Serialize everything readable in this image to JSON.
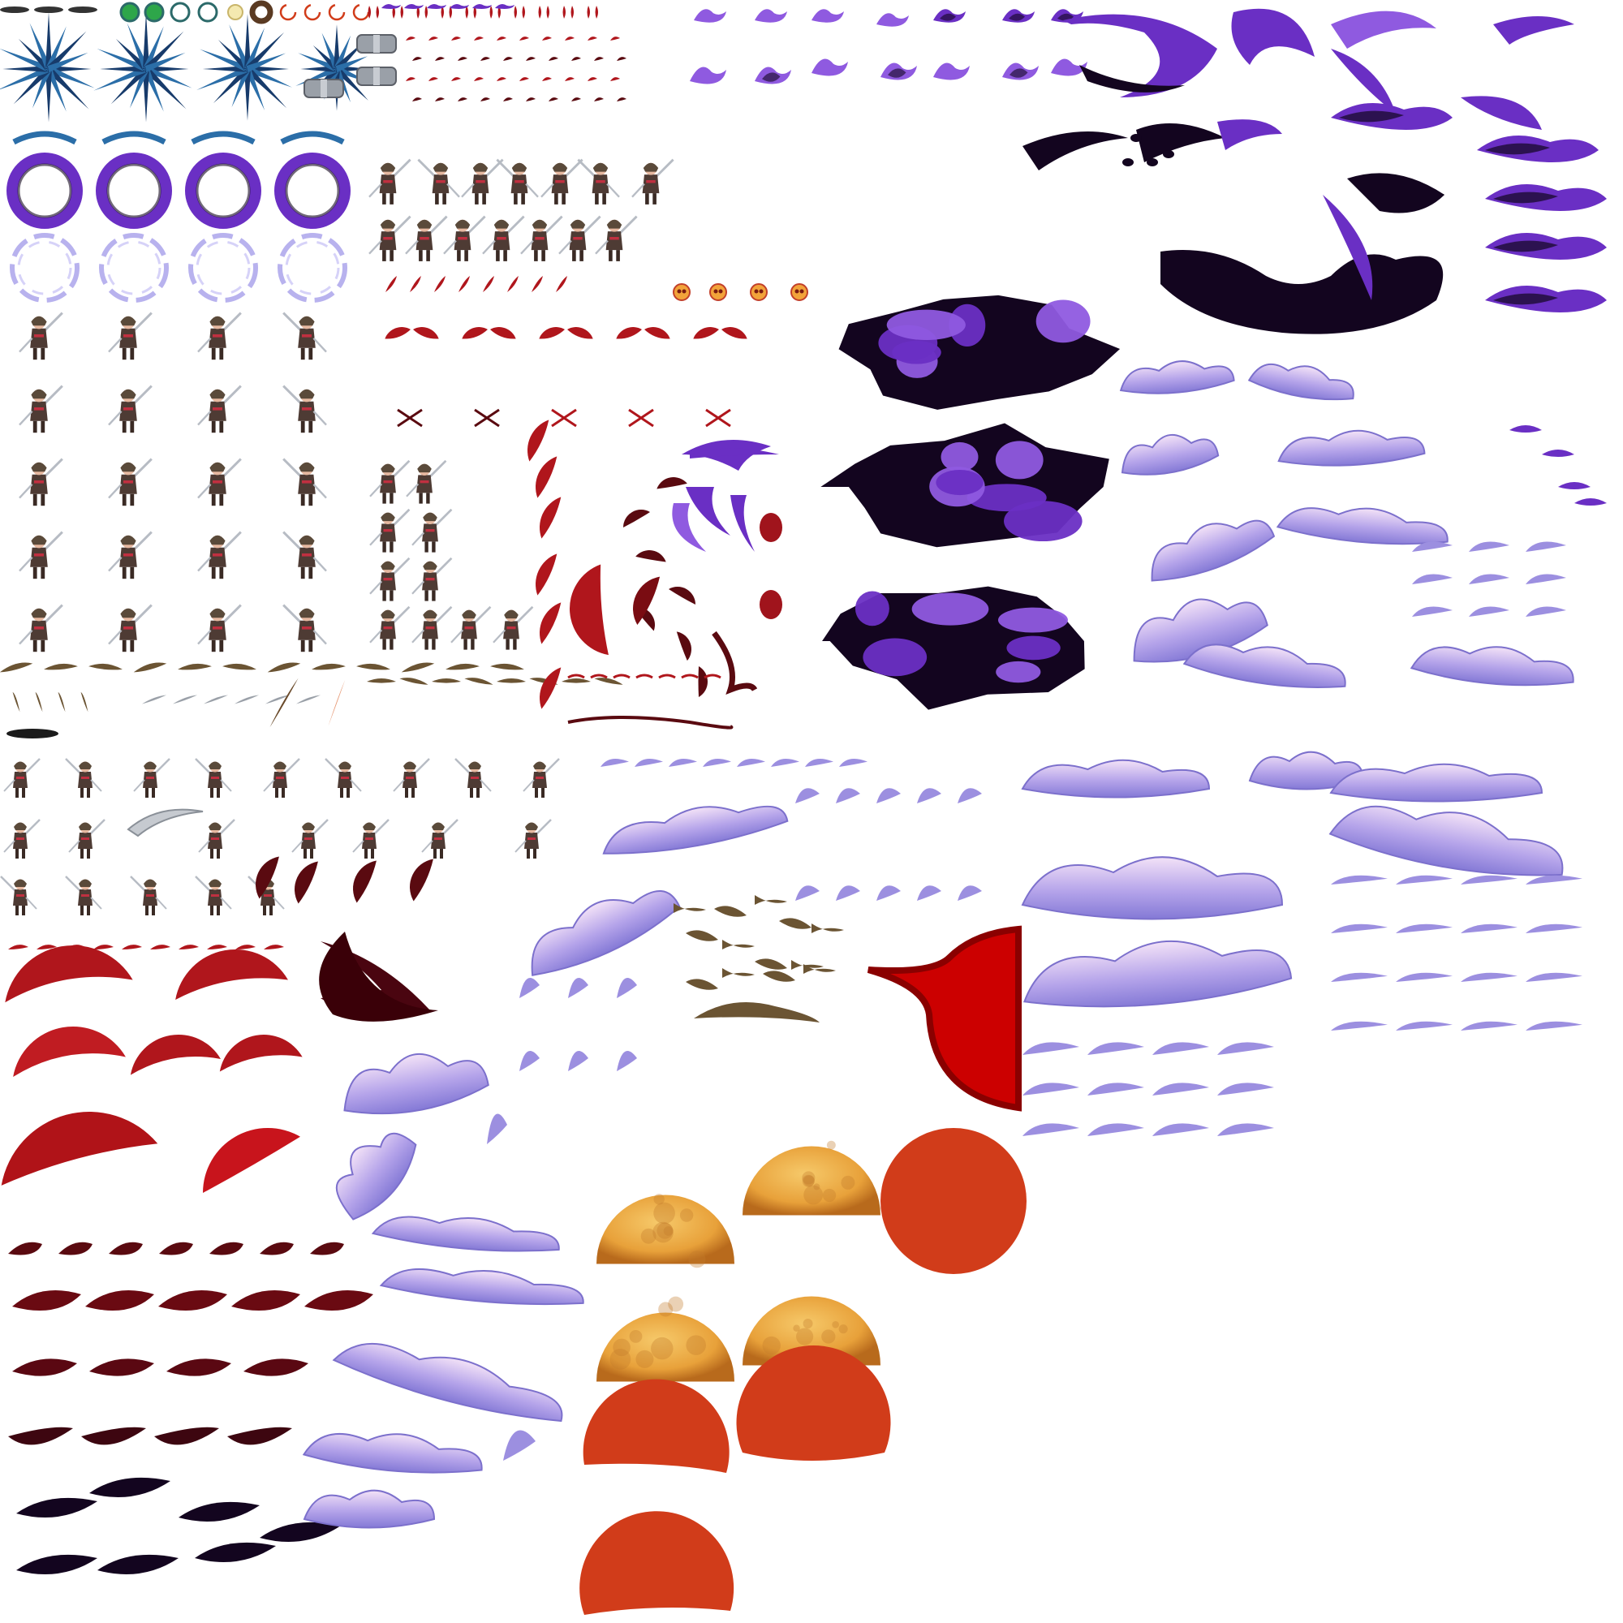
{
  "sheet": {
    "background": "#ffffff"
  },
  "palette": {
    "blue_crystal": "#2b6ea8",
    "blue_dark": "#173b6b",
    "violet": "#6a2fc4",
    "violet_light": "#8f5ae0",
    "shadow": "#13051f",
    "lavender": "#9c8fe0",
    "lilac": "#e6c8f0",
    "blood": "#b0161c",
    "blood_dark": "#5a0a10",
    "bark": "#6b5433",
    "steel": "#9aa0a8",
    "orange": "#d13c1a",
    "moon": "#e8a13a",
    "moon_light": "#f6c96a",
    "green": "#2ea64a",
    "skin": "#e6b8a0",
    "hair": "#5a4a3a"
  },
  "sprites": [
    {
      "kind": "crystal-burst",
      "icon": "crystal-burst-icon"
    },
    {
      "kind": "dark-ring",
      "icon": "dark-ring-icon"
    },
    {
      "kind": "light-ring",
      "icon": "light-ring-icon"
    },
    {
      "kind": "swordsman",
      "icon": "swordsman-sprite-icon"
    },
    {
      "kind": "katana",
      "icon": "katana-icon"
    },
    {
      "kind": "bark-shard",
      "icon": "bark-shard-icon"
    },
    {
      "kind": "blood-slash",
      "icon": "blood-slash-icon"
    },
    {
      "kind": "violet-flame",
      "icon": "violet-flame-icon"
    },
    {
      "kind": "shadow-smoke",
      "icon": "shadow-smoke-icon"
    },
    {
      "kind": "lavender-cloud",
      "icon": "lavender-cloud-icon"
    },
    {
      "kind": "blood-moon",
      "icon": "blood-moon-icon"
    },
    {
      "kind": "red-disc",
      "icon": "red-disc-icon"
    },
    {
      "kind": "gauntlet",
      "icon": "gauntlet-icon"
    },
    {
      "kind": "orb",
      "icon": "orb-icon"
    }
  ]
}
